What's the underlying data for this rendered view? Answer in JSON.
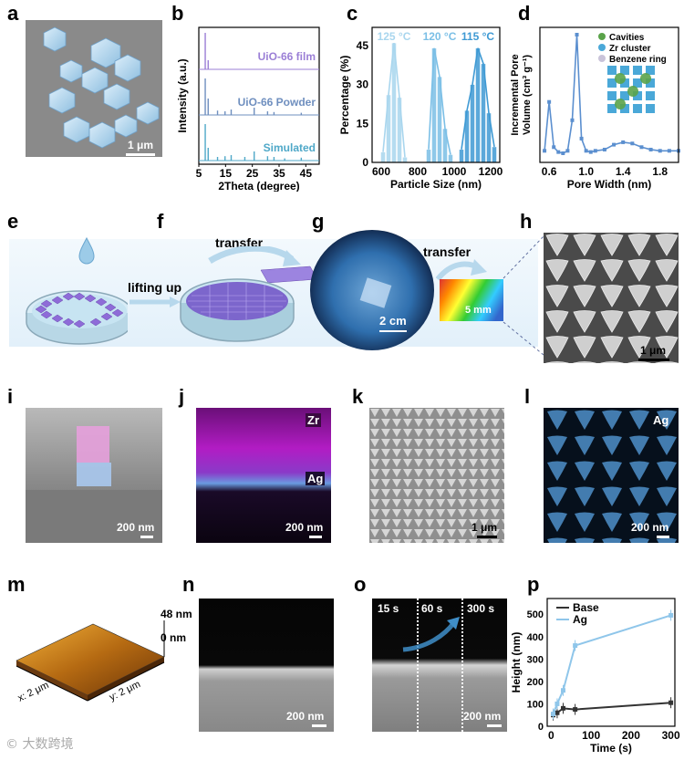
{
  "panel_labels": [
    "a",
    "b",
    "c",
    "d",
    "e",
    "f",
    "g",
    "h",
    "i",
    "j",
    "k",
    "l",
    "m",
    "n",
    "o",
    "p"
  ],
  "panel_a": {
    "scale": "1 μm"
  },
  "panel_b": {
    "chart_data": {
      "type": "line",
      "xlabel": "2Theta (degree)",
      "ylabel": "Intensity (a.u.)",
      "xlim": [
        5,
        50
      ],
      "xticks": [
        5,
        15,
        25,
        35,
        45
      ],
      "series": [
        {
          "name": "UiO-66 film",
          "color": "#9b7fd6",
          "peaks": [
            [
              7.4,
              1.0
            ],
            [
              8.5,
              0.25
            ]
          ]
        },
        {
          "name": "UiO-66 Powder",
          "color": "#6f8fbf",
          "peaks": [
            [
              7.4,
              1.0
            ],
            [
              8.5,
              0.45
            ],
            [
              12.0,
              0.12
            ],
            [
              14.8,
              0.1
            ],
            [
              17.1,
              0.15
            ],
            [
              25.7,
              0.2
            ],
            [
              30.7,
              0.1
            ],
            [
              33.1,
              0.08
            ],
            [
              43.3,
              0.06
            ]
          ]
        },
        {
          "name": "Simulated",
          "color": "#4fa8c8",
          "peaks": [
            [
              7.4,
              1.0
            ],
            [
              8.5,
              0.35
            ],
            [
              12.0,
              0.1
            ],
            [
              14.8,
              0.12
            ],
            [
              17.1,
              0.15
            ],
            [
              22.2,
              0.1
            ],
            [
              25.7,
              0.25
            ],
            [
              30.7,
              0.12
            ],
            [
              33.1,
              0.1
            ],
            [
              37.1,
              0.06
            ],
            [
              43.3,
              0.08
            ]
          ]
        }
      ]
    }
  },
  "panel_c": {
    "chart_data": {
      "type": "bar",
      "xlabel": "Particle Size (nm)",
      "ylabel": "Percentage (%)",
      "xlim": [
        550,
        1250
      ],
      "ylim": [
        0,
        52
      ],
      "xticks": [
        600,
        800,
        1000,
        1200
      ],
      "yticks": [
        0,
        15,
        30,
        45
      ],
      "series": [
        {
          "name": "125 °C",
          "color": "#a9d6ee",
          "x": [
            610,
            640,
            670,
            700,
            730
          ],
          "values": [
            4,
            26,
            46,
            25,
            2
          ]
        },
        {
          "name": "120 °C",
          "color": "#7bbfe6",
          "x": [
            860,
            890,
            920,
            950,
            980
          ],
          "values": [
            5,
            44,
            33,
            13,
            3
          ]
        },
        {
          "name": "115 °C",
          "color": "#3f9ad4",
          "x": [
            1040,
            1070,
            1100,
            1130,
            1160,
            1190,
            1220
          ],
          "values": [
            5,
            20,
            30,
            44,
            38,
            19,
            6
          ]
        }
      ],
      "labels": [
        "125 °C",
        "120 °C",
        "115 °C"
      ]
    }
  },
  "panel_d": {
    "chart_data": {
      "type": "line",
      "xlabel": "Pore Width (nm)",
      "ylabel": "Incremental Pore Volume (cm³ g⁻¹)",
      "xlim": [
        0.5,
        2.0
      ],
      "xticks": [
        0.6,
        1.0,
        1.4,
        1.8
      ],
      "x": [
        0.55,
        0.6,
        0.65,
        0.7,
        0.75,
        0.8,
        0.85,
        0.9,
        0.95,
        1.0,
        1.05,
        1.1,
        1.2,
        1.3,
        1.4,
        1.5,
        1.6,
        1.7,
        1.8,
        1.9,
        2.0
      ],
      "values": [
        0.05,
        0.45,
        0.08,
        0.04,
        0.03,
        0.05,
        0.3,
        1.0,
        0.15,
        0.05,
        0.04,
        0.05,
        0.06,
        0.1,
        0.12,
        0.11,
        0.08,
        0.06,
        0.05,
        0.05,
        0.05
      ],
      "legend": [
        "Cavities",
        "Zr cluster",
        "Benzene ring"
      ]
    }
  },
  "panel_e": {
    "text": "lifting up"
  },
  "panel_f": {
    "text": "transfer"
  },
  "panel_g": {
    "scale": "2 cm",
    "transfer": "transfer",
    "inset_scale": "5 mm"
  },
  "panel_h": {
    "scale": "1 μm"
  },
  "panel_i": {
    "scale": "200 nm"
  },
  "panel_j": {
    "zr": "Zr",
    "ag": "Ag",
    "scale": "200 nm"
  },
  "panel_k": {
    "scale": "1 μm"
  },
  "panel_l": {
    "ag": "Ag",
    "scale": "200 nm"
  },
  "panel_m": {
    "z_max": "48 nm",
    "z_min": "0 nm",
    "x_axis": "x: 2 μm",
    "y_axis": "y: 2 μm"
  },
  "panel_n": {
    "scale": "200 nm"
  },
  "panel_o": {
    "t1": "15 s",
    "t2": "60 s",
    "t3": "300 s",
    "scale": "200 nm"
  },
  "panel_p": {
    "chart_data": {
      "type": "line",
      "xlabel": "Time (s)",
      "ylabel": "Height (nm)",
      "xlim": [
        -10,
        310
      ],
      "ylim": [
        0,
        570
      ],
      "xticks": [
        0,
        100,
        200,
        300
      ],
      "yticks": [
        0,
        100,
        200,
        300,
        400,
        500
      ],
      "series": [
        {
          "name": "Base",
          "color": "#333333",
          "x": [
            5,
            15,
            30,
            60,
            300
          ],
          "values": [
            50,
            60,
            80,
            75,
            105
          ]
        },
        {
          "name": "Ag",
          "color": "#8fc6ea",
          "x": [
            5,
            15,
            30,
            60,
            300
          ],
          "values": [
            55,
            100,
            160,
            360,
            495
          ]
        }
      ]
    }
  },
  "watermark": "© 大数跨境"
}
